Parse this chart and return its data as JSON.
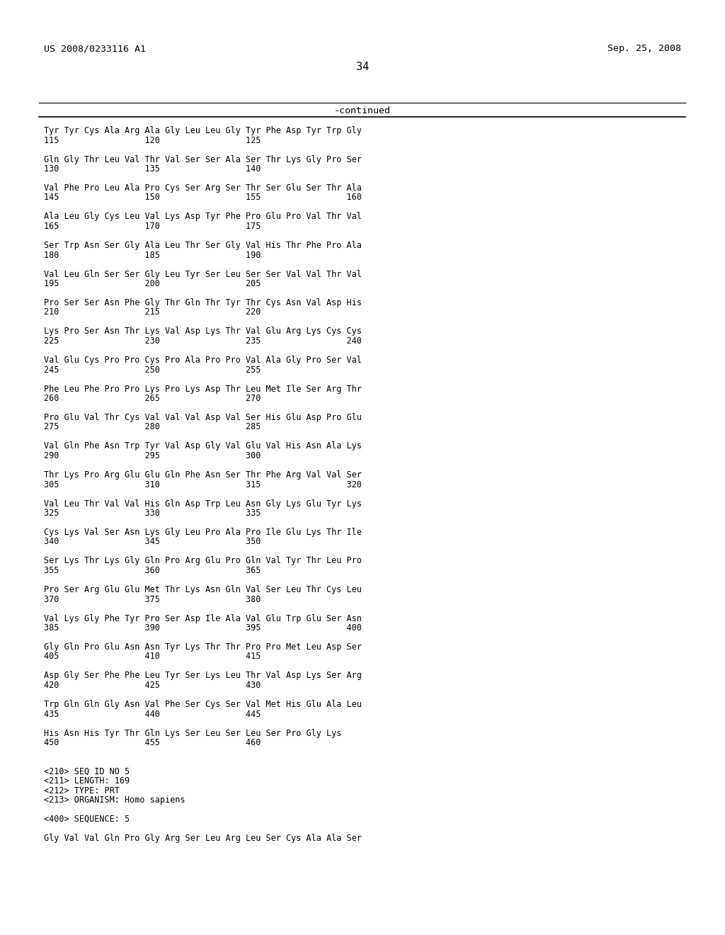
{
  "left_header": "US 2008/0233116 A1",
  "right_header": "Sep. 25, 2008",
  "page_number": "34",
  "continued_label": "-continued",
  "background_color": "#ffffff",
  "text_color": "#000000",
  "font_size": 8.5,
  "header_font_size": 9.5,
  "page_num_font_size": 11,
  "continued_font_size": 9.5,
  "lines": [
    "Tyr Tyr Cys Ala Arg Ala Gly Leu Leu Gly Tyr Phe Asp Tyr Trp Gly",
    "115                 120                 125",
    "",
    "Gln Gly Thr Leu Val Thr Val Ser Ser Ala Ser Thr Lys Gly Pro Ser",
    "130                 135                 140",
    "",
    "Val Phe Pro Leu Ala Pro Cys Ser Arg Ser Thr Ser Glu Ser Thr Ala",
    "145                 150                 155                 160",
    "",
    "Ala Leu Gly Cys Leu Val Lys Asp Tyr Phe Pro Glu Pro Val Thr Val",
    "165                 170                 175",
    "",
    "Ser Trp Asn Ser Gly Ala Leu Thr Ser Gly Val His Thr Phe Pro Ala",
    "180                 185                 190",
    "",
    "Val Leu Gln Ser Ser Gly Leu Tyr Ser Leu Ser Ser Val Val Thr Val",
    "195                 200                 205",
    "",
    "Pro Ser Ser Asn Phe Gly Thr Gln Thr Tyr Thr Cys Asn Val Asp His",
    "210                 215                 220",
    "",
    "Lys Pro Ser Asn Thr Lys Val Asp Lys Thr Val Glu Arg Lys Cys Cys",
    "225                 230                 235                 240",
    "",
    "Val Glu Cys Pro Pro Cys Pro Ala Pro Pro Val Ala Gly Pro Ser Val",
    "245                 250                 255",
    "",
    "Phe Leu Phe Pro Pro Lys Pro Lys Asp Thr Leu Met Ile Ser Arg Thr",
    "260                 265                 270",
    "",
    "Pro Glu Val Thr Cys Val Val Val Asp Val Ser His Glu Asp Pro Glu",
    "275                 280                 285",
    "",
    "Val Gln Phe Asn Trp Tyr Val Asp Gly Val Glu Val His Asn Ala Lys",
    "290                 295                 300",
    "",
    "Thr Lys Pro Arg Glu Glu Gln Phe Asn Ser Thr Phe Arg Val Val Ser",
    "305                 310                 315                 320",
    "",
    "Val Leu Thr Val Val His Gln Asp Trp Leu Asn Gly Lys Glu Tyr Lys",
    "325                 330                 335",
    "",
    "Cys Lys Val Ser Asn Lys Gly Leu Pro Ala Pro Ile Glu Lys Thr Ile",
    "340                 345                 350",
    "",
    "Ser Lys Thr Lys Gly Gln Pro Arg Glu Pro Gln Val Tyr Thr Leu Pro",
    "355                 360                 365",
    "",
    "Pro Ser Arg Glu Glu Met Thr Lys Asn Gln Val Ser Leu Thr Cys Leu",
    "370                 375                 380",
    "",
    "Val Lys Gly Phe Tyr Pro Ser Asp Ile Ala Val Glu Trp Glu Ser Asn",
    "385                 390                 395                 400",
    "",
    "Gly Gln Pro Glu Asn Asn Tyr Lys Thr Thr Pro Pro Met Leu Asp Ser",
    "405                 410                 415",
    "",
    "Asp Gly Ser Phe Phe Leu Tyr Ser Lys Leu Thr Val Asp Lys Ser Arg",
    "420                 425                 430",
    "",
    "Trp Gln Gln Gly Asn Val Phe Ser Cys Ser Val Met His Glu Ala Leu",
    "435                 440                 445",
    "",
    "His Asn His Tyr Thr Gln Lys Ser Leu Ser Leu Ser Pro Gly Lys",
    "450                 455                 460",
    "",
    "",
    "<210> SEQ ID NO 5",
    "<211> LENGTH: 169",
    "<212> TYPE: PRT",
    "<213> ORGANISM: Homo sapiens",
    "",
    "<400> SEQUENCE: 5",
    "",
    "Gly Val Val Gln Pro Gly Arg Ser Leu Arg Leu Ser Cys Ala Ala Ser"
  ]
}
